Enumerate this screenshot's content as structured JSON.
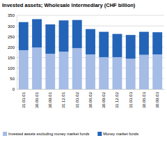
{
  "chart_data": {
    "type": "bar",
    "title": "Invested assets; Wholesale Intermediary (CHF billion)",
    "categories": [
      "31.03.01",
      "30.06.01",
      "30.09.01",
      "31.12.01",
      "31.03.02",
      "30.06.02",
      "30.09.02",
      "31.12.02",
      "31.03.03",
      "30.06.03",
      "30.09.03"
    ],
    "series": [
      {
        "name": "Invested assets excluding money market funds",
        "color": "#a4bce6",
        "values": [
          185,
          198,
          168,
          178,
          195,
          165,
          152,
          152,
          145,
          163,
          165
        ]
      },
      {
        "name": "Money market funds",
        "color": "#2364b8",
        "values": [
          133,
          134,
          139,
          148,
          133,
          120,
          120,
          110,
          112,
          109,
          105
        ]
      }
    ],
    "stacked": true,
    "ylim": [
      0,
      350
    ],
    "yticks": [
      0,
      50,
      100,
      150,
      200,
      250,
      300,
      350
    ],
    "grid": true,
    "legend": "bottom"
  }
}
